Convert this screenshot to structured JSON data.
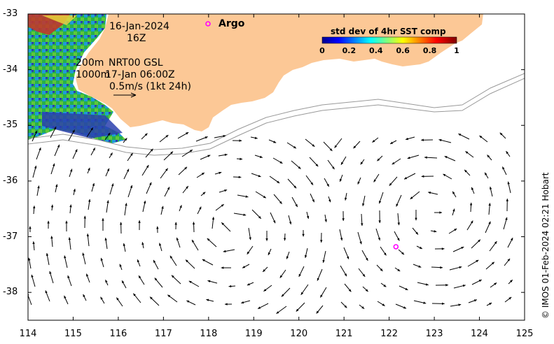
{
  "map": {
    "date_line1": "16-Jan-2024",
    "date_line2": "16Z",
    "depth_200": "200m",
    "depth_1000": "1000m",
    "product_line1": "NRT00 GSL",
    "product_line2": "17-Jan 06:00Z",
    "scale_label": "0.5m/s (1kt 24h)",
    "argo_label": "Argo",
    "credit": "© IMOS 01-Feb-2024 02:21 Hobart",
    "colors": {
      "land": "#fcc896",
      "arrow": "#000000",
      "argo": "#ff00ff",
      "isobath": "#999999"
    }
  },
  "colorbar": {
    "title": "std dev of 4hr SST comp",
    "ticks": [
      "0",
      "0.2",
      "0.4",
      "0.6",
      "0.8",
      "1"
    ],
    "colormap": "jet"
  },
  "axes": {
    "x_ticks": [
      "114",
      "115",
      "116",
      "117",
      "118",
      "119",
      "120",
      "121",
      "122",
      "123",
      "124",
      "125"
    ],
    "y_ticks": [
      "-33",
      "-34",
      "-35",
      "-36",
      "-37",
      "-38"
    ],
    "x_range": [
      114,
      125
    ],
    "y_range": [
      -38.5,
      -33
    ]
  },
  "argo_floats": [
    {
      "lon": 122.15,
      "lat": -37.18
    }
  ]
}
